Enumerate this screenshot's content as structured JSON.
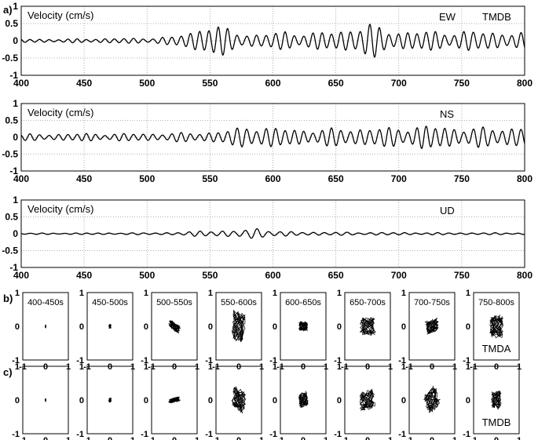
{
  "panel_labels": {
    "a": "a)",
    "b": "b)",
    "c": "c)"
  },
  "chart_data": [
    {
      "type": "line",
      "title": "",
      "ylabel": "Velocity (cm/s)",
      "annotations": [
        "EW",
        "TMDB"
      ],
      "xlim": [
        400,
        800
      ],
      "ylim": [
        -1,
        1
      ],
      "xticks": [
        400,
        450,
        500,
        550,
        600,
        650,
        700,
        750,
        800
      ],
      "yticks": [
        1,
        0.5,
        0,
        -0.5,
        -1
      ],
      "grid": true,
      "series": [
        {
          "envelope": [
            [
              400,
              0.06
            ],
            [
              430,
              0.05
            ],
            [
              460,
              0.07
            ],
            [
              490,
              0.08
            ],
            [
              520,
              0.12
            ],
            [
              535,
              0.3
            ],
            [
              548,
              0.55
            ],
            [
              560,
              0.42
            ],
            [
              575,
              0.25
            ],
            [
              590,
              0.2
            ],
            [
              610,
              0.3
            ],
            [
              630,
              0.25
            ],
            [
              650,
              0.3
            ],
            [
              665,
              0.45
            ],
            [
              675,
              0.55
            ],
            [
              690,
              0.35
            ],
            [
              710,
              0.3
            ],
            [
              740,
              0.3
            ],
            [
              770,
              0.3
            ],
            [
              800,
              0.25
            ]
          ],
          "period": 7.5
        }
      ]
    },
    {
      "type": "line",
      "title": "",
      "ylabel": "Velocity (cm/s)",
      "annotations": [
        "NS"
      ],
      "xlim": [
        400,
        800
      ],
      "ylim": [
        -1,
        1
      ],
      "xticks": [
        400,
        450,
        500,
        550,
        600,
        650,
        700,
        750,
        800
      ],
      "yticks": [
        1,
        0.5,
        0,
        -0.5,
        -1
      ],
      "grid": true,
      "series": [
        {
          "envelope": [
            [
              400,
              0.1
            ],
            [
              450,
              0.12
            ],
            [
              500,
              0.12
            ],
            [
              540,
              0.15
            ],
            [
              560,
              0.2
            ],
            [
              585,
              0.4
            ],
            [
              600,
              0.3
            ],
            [
              630,
              0.25
            ],
            [
              660,
              0.3
            ],
            [
              690,
              0.3
            ],
            [
              720,
              0.38
            ],
            [
              750,
              0.32
            ],
            [
              780,
              0.3
            ],
            [
              800,
              0.38
            ]
          ],
          "period": 7.5
        }
      ]
    },
    {
      "type": "line",
      "title": "",
      "ylabel": "Velocity (cm/s)",
      "annotations": [
        "UD"
      ],
      "xlim": [
        400,
        800
      ],
      "ylim": [
        -1,
        1
      ],
      "xticks": [
        400,
        450,
        500,
        550,
        600,
        650,
        700,
        750,
        800
      ],
      "yticks": [
        1,
        0.5,
        0,
        -0.5,
        -1
      ],
      "grid": true,
      "series": [
        {
          "envelope": [
            [
              400,
              0.02
            ],
            [
              500,
              0.03
            ],
            [
              530,
              0.05
            ],
            [
              550,
              0.12
            ],
            [
              570,
              0.08
            ],
            [
              588,
              0.2
            ],
            [
              605,
              0.07
            ],
            [
              650,
              0.05
            ],
            [
              700,
              0.04
            ],
            [
              750,
              0.03
            ],
            [
              800,
              0.03
            ]
          ],
          "period": 9
        }
      ]
    }
  ],
  "hodograms": {
    "xlim": [
      -1,
      1
    ],
    "ylim": [
      -1,
      1
    ],
    "xticks": [
      -1,
      0,
      1
    ],
    "yticks": [
      1,
      0,
      -1
    ],
    "windows": [
      "400-450s",
      "450-500s",
      "500-550s",
      "550-600s",
      "600-650s",
      "650-700s",
      "700-750s",
      "750-800s"
    ],
    "rows": [
      {
        "label": "b)",
        "station": "TMDA",
        "spread": [
          [
            0.02,
            0.04
          ],
          [
            0.05,
            0.06
          ],
          [
            0.25,
            0.12
          ],
          [
            0.3,
            0.45
          ],
          [
            0.2,
            0.15
          ],
          [
            0.35,
            0.28
          ],
          [
            0.3,
            0.2
          ],
          [
            0.3,
            0.35
          ]
        ],
        "tilt": [
          0,
          0,
          0.5,
          0.2,
          0,
          0,
          -0.2,
          0
        ]
      },
      {
        "label": "c)",
        "station": "TMDB",
        "spread": [
          [
            0.02,
            0.04
          ],
          [
            0.06,
            0.06
          ],
          [
            0.25,
            0.07
          ],
          [
            0.3,
            0.32
          ],
          [
            0.2,
            0.22
          ],
          [
            0.35,
            0.3
          ],
          [
            0.28,
            0.3
          ],
          [
            0.22,
            0.28
          ]
        ],
        "tilt": [
          0,
          0,
          -0.15,
          0.4,
          -0.3,
          -0.2,
          -0.7,
          0
        ]
      }
    ]
  }
}
